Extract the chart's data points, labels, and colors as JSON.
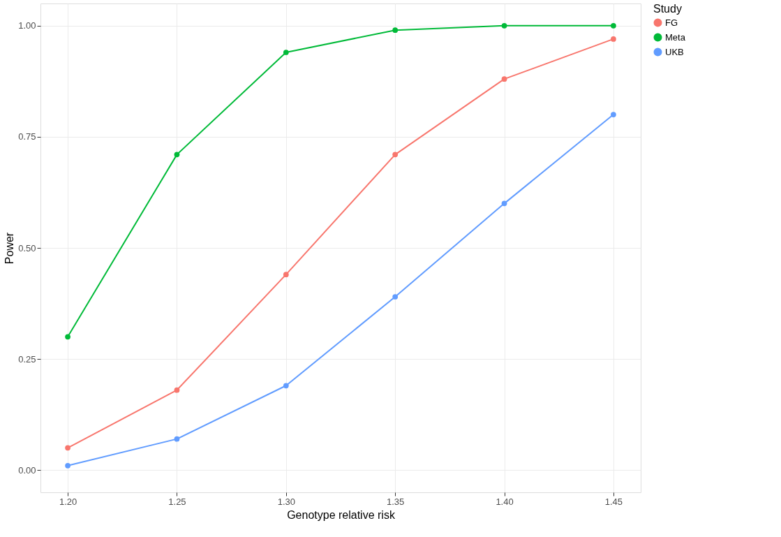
{
  "chart_data": {
    "type": "line",
    "xlabel": "Genotype relative risk",
    "ylabel": "Power",
    "legend_title": "Study",
    "x": [
      1.2,
      1.25,
      1.3,
      1.35,
      1.4,
      1.45
    ],
    "series": [
      {
        "name": "FG",
        "color": "#f8766d",
        "values": [
          0.05,
          0.18,
          0.44,
          0.71,
          0.88,
          0.97
        ]
      },
      {
        "name": "Meta",
        "color": "#00ba38",
        "values": [
          0.3,
          0.71,
          0.94,
          0.99,
          1.0,
          1.0
        ]
      },
      {
        "name": "UKB",
        "color": "#619cff",
        "values": [
          0.01,
          0.07,
          0.19,
          0.39,
          0.6,
          0.8
        ]
      }
    ],
    "xlim": [
      1.1875,
      1.4625
    ],
    "ylim": [
      -0.05,
      1.05
    ],
    "xticks": [
      {
        "value": 1.2,
        "label": "1.20"
      },
      {
        "value": 1.25,
        "label": "1.25"
      },
      {
        "value": 1.3,
        "label": "1.30"
      },
      {
        "value": 1.35,
        "label": "1.35"
      },
      {
        "value": 1.4,
        "label": "1.40"
      },
      {
        "value": 1.45,
        "label": "1.45"
      }
    ],
    "yticks": [
      {
        "value": 0,
        "label": "0.00"
      },
      {
        "value": 0.25,
        "label": "0.25"
      },
      {
        "value": 0.5,
        "label": "0.50"
      },
      {
        "value": 0.75,
        "label": "0.75"
      },
      {
        "value": 1,
        "label": "1.00"
      }
    ],
    "grid": true,
    "legend": "right",
    "marker": "circle",
    "line_style": "solid"
  }
}
